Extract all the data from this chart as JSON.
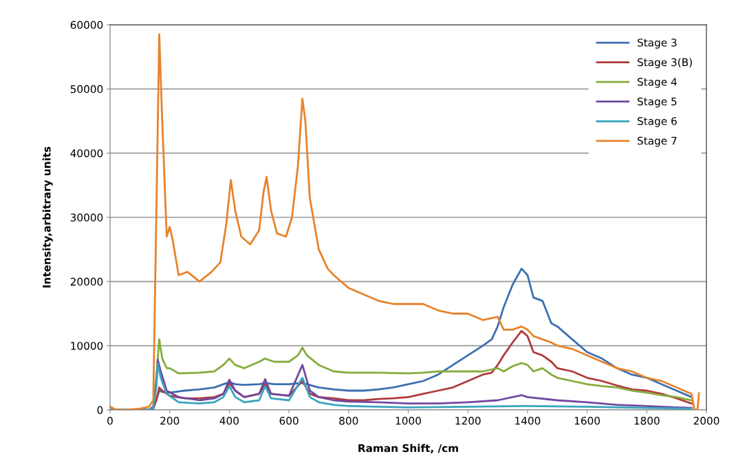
{
  "chart_data": {
    "type": "line",
    "xlabel": "Raman Shift, /cm",
    "ylabel": "Intensity,arbitrary units",
    "xlim": [
      0,
      2000
    ],
    "ylim": [
      0,
      60000
    ],
    "xticks": [
      0,
      200,
      400,
      600,
      800,
      1000,
      1200,
      1400,
      1600,
      1800,
      2000
    ],
    "yticks": [
      0,
      10000,
      20000,
      30000,
      40000,
      50000,
      60000
    ],
    "grid": "y",
    "legend": "top right",
    "marker": "none",
    "line_style": "solid",
    "series": [
      {
        "name": "Stage 3",
        "color": "#3a6fb0",
        "x": [
          0,
          130,
          145,
          155,
          165,
          175,
          200,
          250,
          300,
          350,
          380,
          400,
          420,
          450,
          500,
          520,
          550,
          600,
          640,
          660,
          700,
          750,
          800,
          850,
          900,
          950,
          1000,
          1050,
          1100,
          1150,
          1200,
          1250,
          1280,
          1300,
          1320,
          1350,
          1380,
          1400,
          1420,
          1450,
          1480,
          1500,
          1550,
          1600,
          1650,
          1700,
          1750,
          1800,
          1850,
          1900,
          1950
        ],
        "values": [
          0,
          0,
          200,
          1500,
          3000,
          2800,
          2700,
          3000,
          3200,
          3500,
          4000,
          4300,
          4000,
          3900,
          4000,
          4200,
          4000,
          4000,
          4200,
          4000,
          3500,
          3200,
          3000,
          3000,
          3200,
          3500,
          4000,
          4500,
          5500,
          7000,
          8500,
          10000,
          11000,
          13000,
          16000,
          19500,
          22000,
          21000,
          17500,
          17000,
          13500,
          13000,
          11000,
          9000,
          8000,
          6500,
          5500,
          5000,
          4000,
          3000,
          2000
        ]
      },
      {
        "name": "Stage 3(B)",
        "color": "#b03a3a",
        "x": [
          0,
          130,
          145,
          155,
          165,
          175,
          200,
          250,
          300,
          350,
          380,
          400,
          420,
          450,
          500,
          520,
          540,
          600,
          645,
          670,
          700,
          750,
          800,
          850,
          900,
          950,
          1000,
          1050,
          1100,
          1150,
          1200,
          1250,
          1280,
          1300,
          1320,
          1350,
          1380,
          1400,
          1420,
          1450,
          1480,
          1500,
          1550,
          1600,
          1650,
          1700,
          1750,
          1800,
          1850,
          1900,
          1950
        ],
        "values": [
          0,
          0,
          200,
          1500,
          3500,
          3000,
          2200,
          1800,
          1800,
          2000,
          2500,
          4200,
          3000,
          2000,
          2500,
          4000,
          2500,
          2200,
          4500,
          2500,
          2000,
          1800,
          1500,
          1500,
          1700,
          1800,
          2000,
          2500,
          3000,
          3500,
          4500,
          5500,
          5800,
          7000,
          8500,
          10500,
          12300,
          11500,
          9000,
          8500,
          7500,
          6500,
          6000,
          5000,
          4500,
          3800,
          3200,
          3000,
          2500,
          1800,
          1000
        ]
      },
      {
        "name": "Stage 4",
        "color": "#85ac3c",
        "x": [
          0,
          130,
          145,
          155,
          165,
          175,
          190,
          200,
          230,
          300,
          350,
          380,
          400,
          420,
          450,
          500,
          520,
          550,
          600,
          630,
          645,
          660,
          700,
          750,
          800,
          900,
          1000,
          1050,
          1100,
          1150,
          1200,
          1250,
          1300,
          1320,
          1350,
          1380,
          1400,
          1420,
          1450,
          1480,
          1500,
          1550,
          1600,
          1650,
          1700,
          1750,
          1800,
          1850,
          1900,
          1950
        ],
        "values": [
          0,
          0,
          500,
          5000,
          11000,
          8000,
          6500,
          6500,
          5700,
          5800,
          6000,
          7000,
          8000,
          7000,
          6500,
          7500,
          8000,
          7500,
          7500,
          8500,
          9700,
          8500,
          7000,
          6000,
          5800,
          5800,
          5700,
          5800,
          6000,
          6000,
          6000,
          6000,
          6500,
          6000,
          6800,
          7300,
          7000,
          6000,
          6500,
          5500,
          5000,
          4500,
          4000,
          3700,
          3500,
          3000,
          2700,
          2300,
          2000,
          1500
        ]
      },
      {
        "name": "Stage 5",
        "color": "#7048a0",
        "x": [
          0,
          130,
          145,
          155,
          160,
          170,
          190,
          230,
          300,
          350,
          380,
          400,
          420,
          450,
          500,
          520,
          540,
          600,
          645,
          670,
          700,
          750,
          800,
          900,
          1000,
          1100,
          1200,
          1300,
          1380,
          1400,
          1500,
          1600,
          1700,
          1800,
          1900,
          1950
        ],
        "values": [
          0,
          0,
          500,
          4000,
          7800,
          6000,
          3000,
          2000,
          1500,
          1800,
          2500,
          4700,
          3000,
          2000,
          2500,
          4800,
          2500,
          2200,
          7000,
          3000,
          2000,
          1500,
          1300,
          1200,
          1000,
          1000,
          1200,
          1500,
          2300,
          2000,
          1500,
          1200,
          800,
          600,
          400,
          300
        ]
      },
      {
        "name": "Stage 6",
        "color": "#38a4bf",
        "x": [
          0,
          130,
          145,
          155,
          160,
          170,
          190,
          230,
          300,
          350,
          380,
          400,
          420,
          450,
          500,
          520,
          540,
          600,
          645,
          670,
          700,
          750,
          800,
          900,
          1000,
          1200,
          1400,
          1600,
          1800,
          1950
        ],
        "values": [
          0,
          0,
          300,
          3500,
          7200,
          5000,
          2500,
          1200,
          1000,
          1200,
          2000,
          3700,
          2000,
          1200,
          1500,
          3700,
          1800,
          1500,
          5000,
          2000,
          1200,
          800,
          600,
          500,
          400,
          500,
          600,
          500,
          300,
          200
        ]
      },
      {
        "name": "Stage 7",
        "color": "#e8822a",
        "x": [
          0,
          20,
          50,
          100,
          130,
          145,
          155,
          165,
          175,
          190,
          200,
          210,
          230,
          260,
          300,
          340,
          370,
          390,
          405,
          420,
          440,
          470,
          500,
          515,
          525,
          540,
          560,
          590,
          610,
          630,
          645,
          655,
          670,
          700,
          730,
          750,
          800,
          850,
          900,
          950,
          1000,
          1050,
          1100,
          1150,
          1200,
          1250,
          1300,
          1320,
          1350,
          1380,
          1400,
          1420,
          1450,
          1480,
          1500,
          1550,
          1600,
          1650,
          1700,
          1750,
          1800,
          1850,
          1900,
          1950,
          1960,
          1970,
          1975
        ],
        "values": [
          500,
          0,
          0,
          200,
          500,
          1500,
          30000,
          58500,
          45000,
          27000,
          28500,
          26500,
          21000,
          21500,
          20000,
          21500,
          23000,
          29000,
          35800,
          31000,
          27000,
          25800,
          28000,
          34000,
          36300,
          31000,
          27500,
          27000,
          30000,
          38000,
          48500,
          45000,
          33000,
          25000,
          22000,
          21000,
          19000,
          18000,
          17000,
          16500,
          16500,
          16500,
          15500,
          15000,
          15000,
          14000,
          14500,
          12500,
          12500,
          13000,
          12500,
          11500,
          11000,
          10500,
          10000,
          9500,
          8500,
          7500,
          6500,
          6000,
          5000,
          4500,
          3500,
          2500,
          0,
          0,
          2600
        ]
      }
    ]
  }
}
